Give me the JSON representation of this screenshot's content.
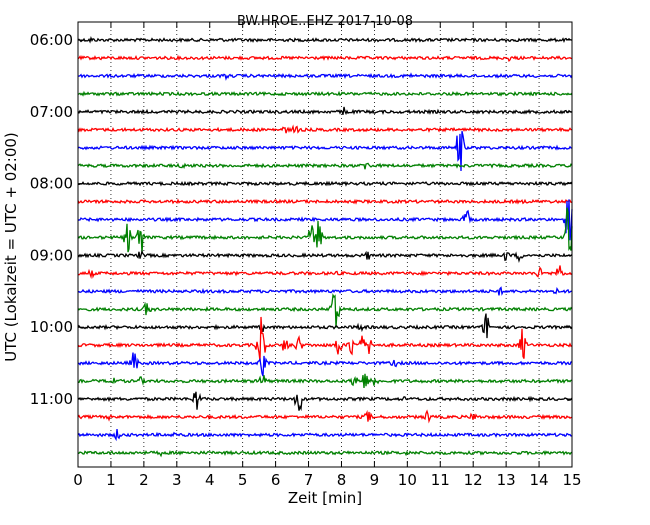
{
  "chart_data": {
    "type": "line",
    "title": "BW.HROE..EHZ 2017-10-08",
    "xlabel": "Zeit  [min]",
    "ylabel": "UTC (Lokalzeit = UTC + 02:00)",
    "xlim": [
      0,
      15
    ],
    "x_ticks": [
      "0",
      "1",
      "2",
      "3",
      "4",
      "5",
      "6",
      "7",
      "8",
      "9",
      "10",
      "11",
      "12",
      "13",
      "14",
      "15"
    ],
    "y_ticks": [
      "06:00",
      "07:00",
      "08:00",
      "09:00",
      "10:00",
      "11:00"
    ],
    "vertical_grid": "dotted",
    "trace_colors": [
      "#000000",
      "#ff0000",
      "#0000ff",
      "#008000"
    ],
    "traces": [
      {
        "start": "06:00",
        "events": [
          {
            "t": 0.4,
            "a": 0.2
          },
          {
            "t": 4.3,
            "a": 0.18
          },
          {
            "t": 13.0,
            "a": 0.15
          }
        ]
      },
      {
        "start": "06:15",
        "events": [
          {
            "t": 0.7,
            "a": 0.12
          },
          {
            "t": 13.1,
            "a": 0.2
          }
        ]
      },
      {
        "start": "06:30",
        "events": [
          {
            "t": 4.5,
            "a": 0.22
          },
          {
            "t": 10.1,
            "a": 0.15
          }
        ]
      },
      {
        "start": "06:45",
        "events": [
          {
            "t": 1.0,
            "a": 0.12
          }
        ]
      },
      {
        "start": "07:00",
        "events": [
          {
            "t": 8.1,
            "a": 0.38
          }
        ]
      },
      {
        "start": "07:15",
        "events": [
          {
            "t": 6.3,
            "a": 0.28
          },
          {
            "t": 6.6,
            "a": 0.35
          }
        ]
      },
      {
        "start": "07:30",
        "events": [
          {
            "t": 11.6,
            "a": 1.9
          }
        ]
      },
      {
        "start": "07:45",
        "events": [
          {
            "t": 3.2,
            "a": 0.32
          },
          {
            "t": 8.75,
            "a": 0.38
          }
        ]
      },
      {
        "start": "08:00",
        "events": [
          {
            "t": 5.0,
            "a": 0.12
          }
        ]
      },
      {
        "start": "08:15",
        "events": [
          {
            "t": 0.5,
            "a": 0.12
          },
          {
            "t": 13.5,
            "a": 0.12
          }
        ]
      },
      {
        "start": "08:30",
        "events": [
          {
            "t": 11.8,
            "a": 0.7
          },
          {
            "t": 14.9,
            "a": 1.8
          }
        ]
      },
      {
        "start": "08:45",
        "events": [
          {
            "t": 1.5,
            "a": 0.95
          },
          {
            "t": 1.9,
            "a": 1.3
          },
          {
            "t": 7.1,
            "a": 0.9
          },
          {
            "t": 7.3,
            "a": 1.2
          },
          {
            "t": 14.9,
            "a": 2.6
          }
        ]
      },
      {
        "start": "09:00",
        "events": [
          {
            "t": 1.9,
            "a": 0.3
          },
          {
            "t": 8.8,
            "a": 0.3
          },
          {
            "t": 13.0,
            "a": 0.38
          },
          {
            "t": 13.4,
            "a": 0.38
          }
        ]
      },
      {
        "start": "09:15",
        "events": [
          {
            "t": 0.4,
            "a": 0.28
          },
          {
            "t": 7.8,
            "a": 0.2
          },
          {
            "t": 14.0,
            "a": 0.4
          },
          {
            "t": 14.6,
            "a": 0.75
          }
        ]
      },
      {
        "start": "09:30",
        "events": [
          {
            "t": 12.8,
            "a": 0.3
          },
          {
            "t": 14.5,
            "a": 0.22
          }
        ]
      },
      {
        "start": "09:45",
        "events": [
          {
            "t": 2.1,
            "a": 0.55
          },
          {
            "t": 7.8,
            "a": 2.2
          }
        ]
      },
      {
        "start": "10:00",
        "events": [
          {
            "t": 5.6,
            "a": 0.3
          },
          {
            "t": 8.6,
            "a": 0.38
          },
          {
            "t": 12.4,
            "a": 1.0
          }
        ]
      },
      {
        "start": "10:15",
        "events": [
          {
            "t": 5.55,
            "a": 2.5
          },
          {
            "t": 6.3,
            "a": 0.6
          },
          {
            "t": 6.7,
            "a": 0.6
          },
          {
            "t": 7.9,
            "a": 0.75
          },
          {
            "t": 8.3,
            "a": 0.8
          },
          {
            "t": 8.6,
            "a": 0.75
          },
          {
            "t": 8.85,
            "a": 0.6
          },
          {
            "t": 13.5,
            "a": 1.1
          }
        ]
      },
      {
        "start": "10:30",
        "events": [
          {
            "t": 1.7,
            "a": 0.85
          },
          {
            "t": 5.6,
            "a": 0.9
          },
          {
            "t": 9.6,
            "a": 0.3
          }
        ]
      },
      {
        "start": "10:45",
        "events": [
          {
            "t": 1.0,
            "a": 0.5
          },
          {
            "t": 1.9,
            "a": 0.28
          },
          {
            "t": 5.6,
            "a": 0.55
          },
          {
            "t": 8.4,
            "a": 0.6
          },
          {
            "t": 8.7,
            "a": 0.65
          },
          {
            "t": 9.0,
            "a": 0.5
          }
        ]
      },
      {
        "start": "11:00",
        "events": [
          {
            "t": 3.6,
            "a": 0.85
          },
          {
            "t": 6.7,
            "a": 1.1
          },
          {
            "t": 9.9,
            "a": 0.15
          }
        ]
      },
      {
        "start": "11:15",
        "events": [
          {
            "t": 1.0,
            "a": 0.25
          },
          {
            "t": 8.8,
            "a": 0.45
          },
          {
            "t": 10.6,
            "a": 0.45
          },
          {
            "t": 12.0,
            "a": 0.35
          }
        ]
      },
      {
        "start": "11:30",
        "events": [
          {
            "t": 1.2,
            "a": 0.38
          },
          {
            "t": 2.9,
            "a": 0.2
          },
          {
            "t": 7.0,
            "a": 0.12
          },
          {
            "t": 9.3,
            "a": 0.12
          }
        ]
      },
      {
        "start": "11:45",
        "events": [
          {
            "t": 2.5,
            "a": 0.2
          },
          {
            "t": 10.0,
            "a": 0.15
          }
        ]
      }
    ]
  }
}
